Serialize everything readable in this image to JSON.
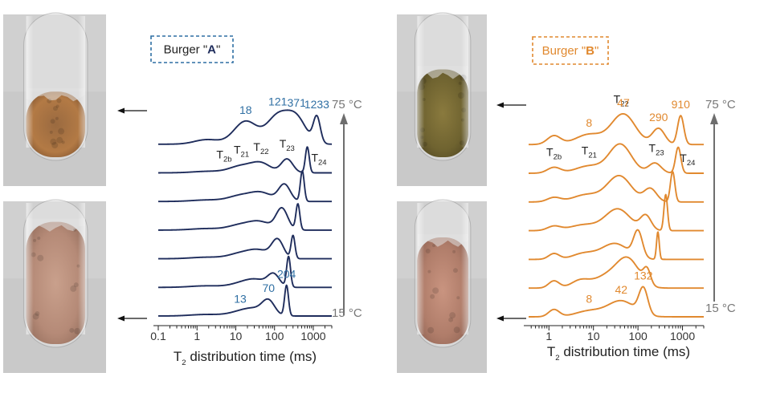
{
  "colors": {
    "A": "#1f2d5c",
    "A_label": "#2f6fa3",
    "B": "#e1892f",
    "arrow": "#6e6e6e",
    "axis": "#222222"
  },
  "temps": {
    "high": "75 °C",
    "low": "15 °C"
  },
  "photos": [
    {
      "panel": "A",
      "state": "cooked",
      "tone": "brown"
    },
    {
      "panel": "A",
      "state": "raw",
      "tone": "pink"
    },
    {
      "panel": "B",
      "state": "cooked",
      "tone": "olive"
    },
    {
      "panel": "B",
      "state": "raw",
      "tone": "pink"
    }
  ],
  "chart_data": [
    {
      "type": "line",
      "panel": "A",
      "name_prefix": "Burger \"",
      "name_letter": "A",
      "name_suffix": "\"",
      "xlabel_main": "T",
      "xlabel_sub": "2",
      "xlabel_rest": " distribution time (ms)",
      "x_scale": "log",
      "xlim": [
        0.1,
        3000
      ],
      "x_ticks": [
        0.1,
        1,
        10,
        100,
        1000
      ],
      "x_tick_labels": [
        "0.1",
        "1",
        "10",
        "100",
        "1000"
      ],
      "n_traces": 7,
      "temperatures_shown": [
        "15 °C",
        "75 °C"
      ],
      "components": [
        {
          "main": "T",
          "sub": "2b",
          "x": 5.0,
          "trace": 5
        },
        {
          "main": "T",
          "sub": "21",
          "x": 14,
          "trace": 5
        },
        {
          "main": "T",
          "sub": "22",
          "x": 45,
          "trace": 5
        },
        {
          "main": "T",
          "sub": "23",
          "x": 210,
          "trace": 5
        },
        {
          "main": "T",
          "sub": "24",
          "x": 1400,
          "trace": 5
        }
      ],
      "peak_labels": [
        {
          "text": "18",
          "x": 18,
          "trace": 6
        },
        {
          "text": "121",
          "x": 121,
          "trace": 6
        },
        {
          "text": "371",
          "x": 371,
          "trace": 6
        },
        {
          "text": "1233",
          "x": 1233,
          "trace": 6
        },
        {
          "text": "13",
          "x": 13,
          "trace": 0
        },
        {
          "text": "70",
          "x": 70,
          "trace": 0
        },
        {
          "text": "204",
          "x": 204,
          "trace": 0
        }
      ],
      "series": [
        {
          "peaks": [
            [
              1.7,
              0.4,
              0.05
            ],
            [
              13,
              0.3,
              0.12
            ],
            [
              32,
              0.28,
              0.2
            ],
            [
              70,
              0.16,
              0.45
            ],
            [
              204,
              0.05,
              1.0
            ]
          ]
        },
        {
          "peaks": [
            [
              1.7,
              0.4,
              0.05
            ],
            [
              14,
              0.3,
              0.12
            ],
            [
              35,
              0.28,
              0.22
            ],
            [
              95,
              0.15,
              0.4
            ],
            [
              230,
              0.05,
              1.0
            ]
          ]
        },
        {
          "peaks": [
            [
              1.8,
              0.4,
              0.05
            ],
            [
              13,
              0.3,
              0.16
            ],
            [
              40,
              0.28,
              0.26
            ],
            [
              120,
              0.15,
              0.6
            ],
            [
              300,
              0.05,
              0.75
            ]
          ]
        },
        {
          "peaks": [
            [
              1.8,
              0.4,
              0.05
            ],
            [
              13,
              0.3,
              0.16
            ],
            [
              42,
              0.28,
              0.26
            ],
            [
              155,
              0.15,
              0.7
            ],
            [
              400,
              0.05,
              0.85
            ]
          ]
        },
        {
          "peaks": [
            [
              1.9,
              0.4,
              0.05
            ],
            [
              13,
              0.3,
              0.18
            ],
            [
              45,
              0.28,
              0.28
            ],
            [
              180,
              0.15,
              0.55
            ],
            [
              520,
              0.05,
              1.0
            ]
          ]
        },
        {
          "peaks": [
            [
              2.0,
              0.4,
              0.05
            ],
            [
              14,
              0.3,
              0.22
            ],
            [
              45,
              0.25,
              0.3
            ],
            [
              210,
              0.15,
              0.45
            ],
            [
              700,
              0.05,
              0.85
            ]
          ]
        },
        {
          "peaks": [
            [
              1.8,
              0.32,
              0.15
            ],
            [
              18,
              0.3,
              0.75
            ],
            [
              121,
              0.28,
              0.9
            ],
            [
              371,
              0.25,
              0.8
            ],
            [
              1233,
              0.09,
              0.85
            ]
          ]
        }
      ]
    },
    {
      "type": "line",
      "panel": "B",
      "name_prefix": "Burger \"",
      "name_letter": "B",
      "name_suffix": "\"",
      "xlabel_main": "T",
      "xlabel_sub": "2",
      "xlabel_rest": " distribution time (ms)",
      "x_scale": "log",
      "xlim": [
        0.35,
        3000
      ],
      "x_ticks": [
        1,
        10,
        100,
        1000
      ],
      "x_tick_labels": [
        "1",
        "10",
        "100",
        "1000"
      ],
      "n_traces": 7,
      "temperatures_shown": [
        "15 °C",
        "75 °C"
      ],
      "components": [
        {
          "main": "T",
          "sub": "2b",
          "x": 1.3,
          "trace": 5
        },
        {
          "main": "T",
          "sub": "21",
          "x": 8,
          "trace": 5
        },
        {
          "main": "T",
          "sub": "22",
          "x": 42,
          "trace": 6
        },
        {
          "main": "T",
          "sub": "23",
          "x": 260,
          "trace": 5
        },
        {
          "main": "T",
          "sub": "24",
          "x": 1300,
          "trace": 5
        }
      ],
      "peak_labels": [
        {
          "text": "8",
          "x": 8,
          "trace": 6
        },
        {
          "text": "47",
          "x": 47,
          "trace": 6
        },
        {
          "text": "290",
          "x": 290,
          "trace": 6
        },
        {
          "text": "910",
          "x": 910,
          "trace": 6
        },
        {
          "text": "8",
          "x": 8,
          "trace": 0
        },
        {
          "text": "42",
          "x": 42,
          "trace": 0
        },
        {
          "text": "132",
          "x": 132,
          "trace": 0
        }
      ],
      "series": [
        {
          "peaks": [
            [
              1.3,
              0.12,
              0.25
            ],
            [
              8,
              0.3,
              0.2
            ],
            [
              42,
              0.3,
              0.55
            ],
            [
              132,
              0.1,
              0.9
            ]
          ]
        },
        {
          "peaks": [
            [
              1.3,
              0.12,
              0.25
            ],
            [
              5,
              0.2,
              0.25
            ],
            [
              20,
              0.3,
              0.4
            ],
            [
              60,
              0.25,
              0.95
            ],
            [
              160,
              0.08,
              0.5
            ]
          ]
        },
        {
          "peaks": [
            [
              1.3,
              0.12,
              0.2
            ],
            [
              6,
              0.25,
              0.2
            ],
            [
              30,
              0.3,
              0.55
            ],
            [
              100,
              0.1,
              0.9
            ],
            [
              280,
              0.03,
              0.95
            ]
          ]
        },
        {
          "peaks": [
            [
              1.3,
              0.15,
              0.15
            ],
            [
              6,
              0.3,
              0.2
            ],
            [
              35,
              0.28,
              0.75
            ],
            [
              150,
              0.12,
              0.5
            ],
            [
              420,
              0.04,
              1.25
            ]
          ]
        },
        {
          "peaks": [
            [
              1.3,
              0.15,
              0.15
            ],
            [
              7,
              0.3,
              0.25
            ],
            [
              38,
              0.27,
              0.9
            ],
            [
              190,
              0.14,
              0.45
            ],
            [
              600,
              0.05,
              1.05
            ]
          ]
        },
        {
          "peaks": [
            [
              1.3,
              0.15,
              0.2
            ],
            [
              8,
              0.3,
              0.25
            ],
            [
              40,
              0.25,
              1.0
            ],
            [
              240,
              0.14,
              0.35
            ],
            [
              800,
              0.06,
              0.9
            ]
          ]
        },
        {
          "peaks": [
            [
              1.3,
              0.15,
              0.3
            ],
            [
              8,
              0.3,
              0.35
            ],
            [
              47,
              0.27,
              1.05
            ],
            [
              290,
              0.14,
              0.55
            ],
            [
              910,
              0.07,
              1.0
            ]
          ]
        }
      ]
    }
  ]
}
